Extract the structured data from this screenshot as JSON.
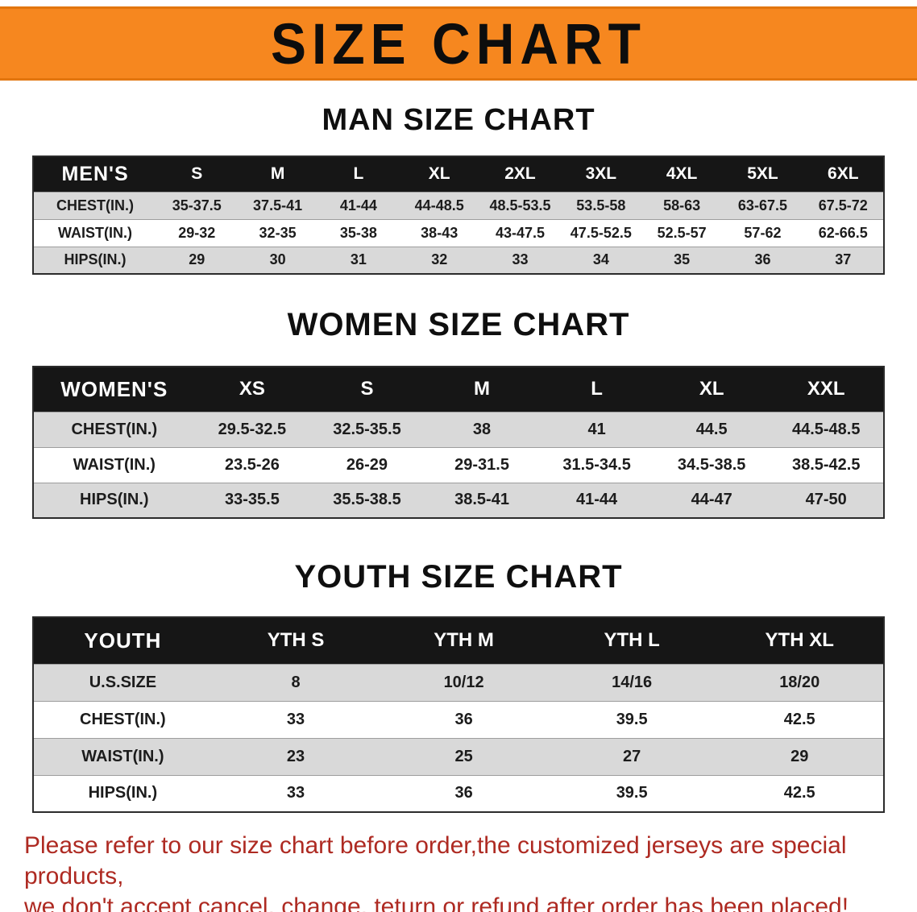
{
  "banner": {
    "title": "SIZE CHART"
  },
  "colors": {
    "banner_bg": "#f6871f",
    "table_header_bg": "#161616",
    "row_alt_bg": "#d9d9d9",
    "disclaimer_text": "#ae2a22"
  },
  "sections": [
    {
      "heading": "MAN SIZE CHART",
      "table": {
        "name": "mens",
        "header": [
          "MEN'S",
          "S",
          "M",
          "L",
          "XL",
          "2XL",
          "3XL",
          "4XL",
          "5XL",
          "6XL"
        ],
        "rows": [
          [
            "CHEST(IN.)",
            "35-37.5",
            "37.5-41",
            "41-44",
            "44-48.5",
            "48.5-53.5",
            "53.5-58",
            "58-63",
            "63-67.5",
            "67.5-72"
          ],
          [
            "WAIST(IN.)",
            "29-32",
            "32-35",
            "35-38",
            "38-43",
            "43-47.5",
            "47.5-52.5",
            "52.5-57",
            "57-62",
            "62-66.5"
          ],
          [
            "HIPS(IN.)",
            "29",
            "30",
            "31",
            "32",
            "33",
            "34",
            "35",
            "36",
            "37"
          ]
        ]
      }
    },
    {
      "heading": "WOMEN SIZE CHART",
      "table": {
        "name": "womens",
        "header": [
          "WOMEN'S",
          "XS",
          "S",
          "M",
          "L",
          "XL",
          "XXL"
        ],
        "rows": [
          [
            "CHEST(IN.)",
            "29.5-32.5",
            "32.5-35.5",
            "38",
            "41",
            "44.5",
            "44.5-48.5"
          ],
          [
            "WAIST(IN.)",
            "23.5-26",
            "26-29",
            "29-31.5",
            "31.5-34.5",
            "34.5-38.5",
            "38.5-42.5"
          ],
          [
            "HIPS(IN.)",
            "33-35.5",
            "35.5-38.5",
            "38.5-41",
            "41-44",
            "44-47",
            "47-50"
          ]
        ]
      }
    },
    {
      "heading": "YOUTH SIZE CHART",
      "table": {
        "name": "youth",
        "header": [
          "YOUTH",
          "YTH S",
          "YTH M",
          "YTH L",
          "YTH XL"
        ],
        "rows": [
          [
            "U.S.SIZE",
            "8",
            "10/12",
            "14/16",
            "18/20"
          ],
          [
            "CHEST(IN.)",
            "33",
            "36",
            "39.5",
            "42.5"
          ],
          [
            "WAIST(IN.)",
            "23",
            "25",
            "27",
            "29"
          ],
          [
            "HIPS(IN.)",
            "33",
            "36",
            "39.5",
            "42.5"
          ]
        ]
      }
    }
  ],
  "disclaimer": {
    "line1": "Please refer to our size chart before order,the customized jerseys are special products,",
    "line2": "we don't accept cancel, change, teturn or refund after order has been placed!"
  }
}
